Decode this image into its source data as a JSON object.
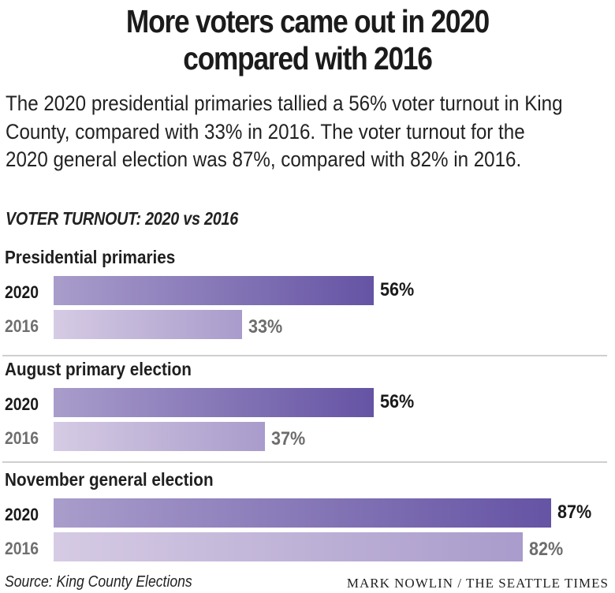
{
  "header": {
    "title_line1": "More voters came out in 2020",
    "title_line2": "compared with 2016",
    "subtitle": "The 2020 presidential primaries tallied a 56% voter turnout in King County, compared with 33% in 2016. The voter turnout for the 2020 general election was 87%, compared with 82% in 2016.",
    "kicker": "VOTER TURNOUT: 2020 vs 2016"
  },
  "colors": {
    "bar_2020_start": "#a99dcb",
    "bar_2020_end": "#6553a4",
    "bar_2016_start": "#d6cbe4",
    "bar_2016_end": "#a99bcb"
  },
  "chart_data": {
    "type": "bar",
    "orientation": "horizontal",
    "title": "VOTER TURNOUT: 2020 vs 2016",
    "xlabel": "",
    "ylabel": "",
    "xlim": [
      0,
      100
    ],
    "unit": "%",
    "grid": false,
    "categories": [
      "Presidential primaries",
      "August primary election",
      "November general election"
    ],
    "series": [
      {
        "name": "2020",
        "values": [
          56,
          56,
          87
        ],
        "labels": [
          "56%",
          "56%",
          "87%"
        ]
      },
      {
        "name": "2016",
        "values": [
          33,
          37,
          82
        ],
        "labels": [
          "33%",
          "37%",
          "82%"
        ]
      }
    ]
  },
  "footer": {
    "source": "Source: King County Elections",
    "credit": "MARK NOWLIN / THE SEATTLE TIMES"
  }
}
